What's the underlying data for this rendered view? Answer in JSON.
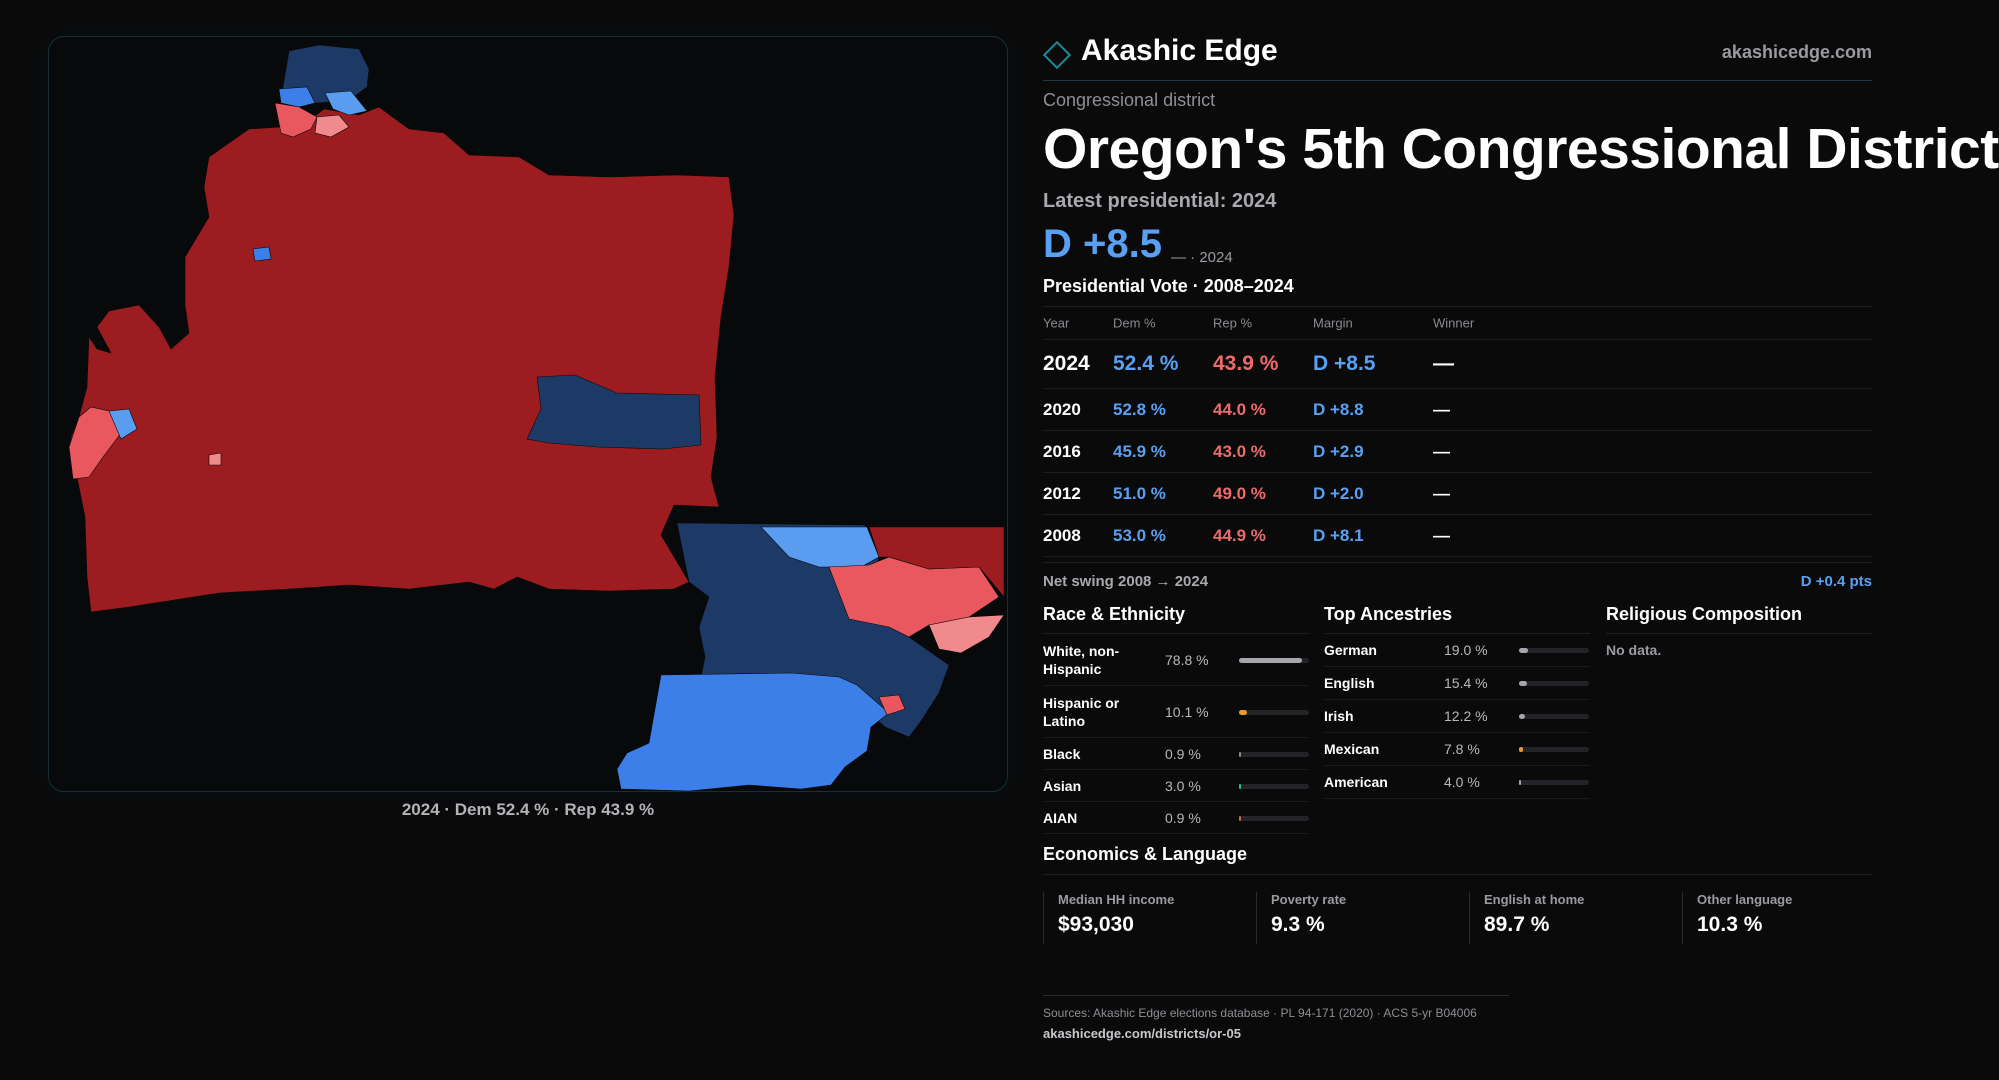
{
  "brand": {
    "name": "Akashic Edge",
    "url": "akashicedge.com",
    "logo": "diamond-outline-icon"
  },
  "map": {
    "caption": "2024 · Dem 52.4 % · Rep 43.9 %",
    "colors": {
      "safe_rep": "#9d1c1f",
      "lean_rep": "#e8585e",
      "tilt_rep": "#f08a8c",
      "safe_dem": "#1d3a66",
      "lean_dem": "#3d7fe8",
      "tilt_dem": "#5a9cf0"
    }
  },
  "header": {
    "kicker": "Congressional district",
    "title": "Oregon's 5th Congressional District",
    "latest_label": "Latest presidential: 2024",
    "margin": "D +8.5",
    "margin_sub": "— · 2024"
  },
  "vote_table": {
    "title": "Presidential Vote · 2008–2024",
    "headers": {
      "year": "Year",
      "dem": "Dem %",
      "rep": "Rep %",
      "margin": "Margin",
      "winner": "Winner"
    },
    "rows": [
      {
        "year": "2024",
        "dem": "52.4 %",
        "rep": "43.9 %",
        "margin": "D +8.5",
        "winner": "—"
      },
      {
        "year": "2020",
        "dem": "52.8 %",
        "rep": "44.0 %",
        "margin": "D +8.8",
        "winner": "—"
      },
      {
        "year": "2016",
        "dem": "45.9 %",
        "rep": "43.0 %",
        "margin": "D +2.9",
        "winner": "—"
      },
      {
        "year": "2012",
        "dem": "51.0 %",
        "rep": "49.0 %",
        "margin": "D +2.0",
        "winner": "—"
      },
      {
        "year": "2008",
        "dem": "53.0 %",
        "rep": "44.9 %",
        "margin": "D +8.1",
        "winner": "—"
      }
    ],
    "swing_label": "Net swing 2008 → 2024",
    "swing_value": "D +0.4 pts"
  },
  "race": {
    "title": "Race & Ethnicity",
    "rows": [
      {
        "label": "White, non-Hispanic",
        "value": "78.8 %",
        "pct": 78.8,
        "color": "#a6a6ad"
      },
      {
        "label": "Hispanic or Latino",
        "value": "10.1 %",
        "pct": 10.1,
        "color": "#e89a2c"
      },
      {
        "label": "Black",
        "value": "0.9 %",
        "pct": 0.9,
        "color": "#8a8a90"
      },
      {
        "label": "Asian",
        "value": "3.0 %",
        "pct": 3.0,
        "color": "#2cc08a"
      },
      {
        "label": "AIAN",
        "value": "0.9 %",
        "pct": 0.9,
        "color": "#c86a3a"
      }
    ]
  },
  "ancestry": {
    "title": "Top Ancestries",
    "rows": [
      {
        "label": "German",
        "value": "19.0 %",
        "pct": 19.0,
        "color": "#a6a6ad"
      },
      {
        "label": "English",
        "value": "15.4 %",
        "pct": 15.4,
        "color": "#a6a6ad"
      },
      {
        "label": "Irish",
        "value": "12.2 %",
        "pct": 12.2,
        "color": "#a6a6ad"
      },
      {
        "label": "Mexican",
        "value": "7.8 %",
        "pct": 7.8,
        "color": "#e89a2c"
      },
      {
        "label": "American",
        "value": "4.0 %",
        "pct": 4.0,
        "color": "#a6a6ad"
      }
    ]
  },
  "religion": {
    "title": "Religious Composition",
    "empty": "No data."
  },
  "economics": {
    "title": "Economics & Language",
    "stats": [
      {
        "label": "Median HH income",
        "value": "$93,030"
      },
      {
        "label": "Poverty rate",
        "value": "9.3 %"
      },
      {
        "label": "English at home",
        "value": "89.7 %"
      },
      {
        "label": "Other language",
        "value": "10.3 %"
      }
    ]
  },
  "footer": {
    "sources": "Sources: Akashic Edge elections database · PL 94-171 (2020) · ACS 5-yr B04006",
    "url": "akashicedge.com/districts/or-05"
  }
}
